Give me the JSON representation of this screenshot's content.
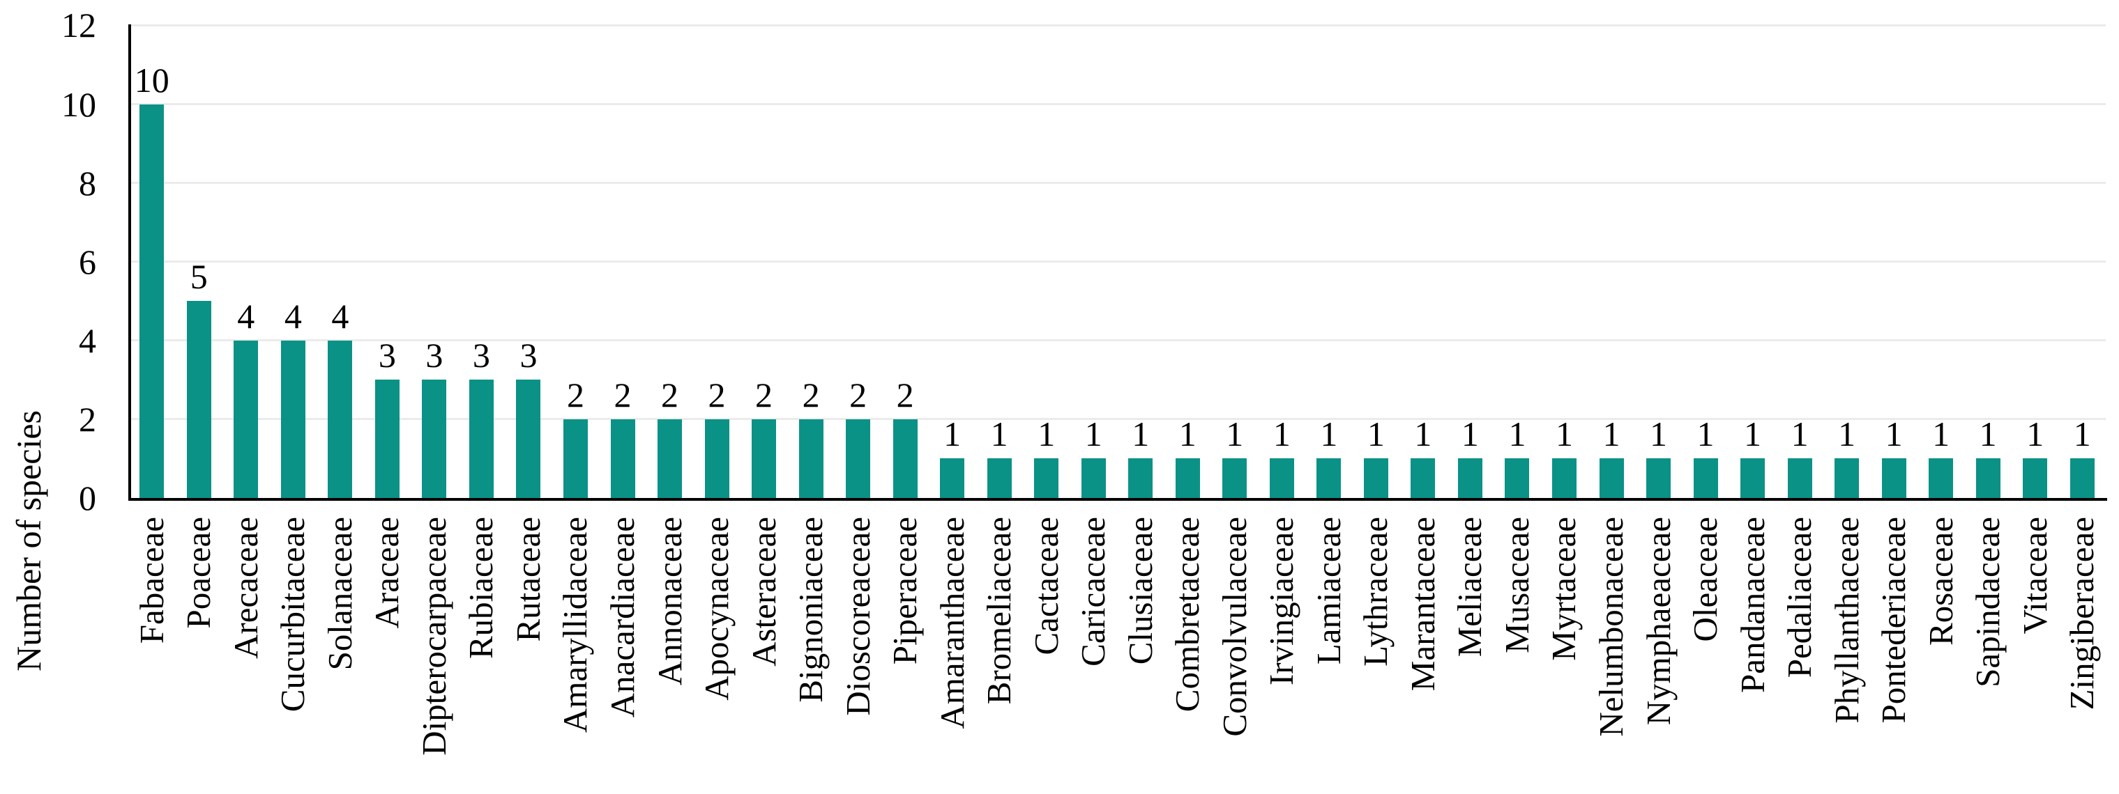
{
  "chart_data": {
    "type": "bar",
    "title": "",
    "xlabel": "",
    "ylabel": "Number of species",
    "ylim": [
      0,
      12
    ],
    "yticks": [
      0,
      2,
      4,
      6,
      8,
      10,
      12
    ],
    "grid": true,
    "legend": false,
    "data_labels_shown": true,
    "bar_color": "#0a9286",
    "gridline_color": "#ebebeb",
    "axis_color": "#000000",
    "categories": [
      "Fabaceae",
      "Poaceae",
      "Arecaceae",
      "Cucurbitaceae",
      "Solanaceae",
      "Araceae",
      "Dipterocarpaceae",
      "Rubiaceae",
      "Rutaceae",
      "Amaryllidaceae",
      "Anacardiaceae",
      "Annonaceae",
      "Apocynaceae",
      "Asteraceae",
      "Bignoniaceae",
      "Dioscoreaceae",
      "Piperaceae",
      "Amaranthaceae",
      "Bromeliaceae",
      "Cactaceae",
      "Caricaceae",
      "Clusiaceae",
      "Combretaceae",
      "Convolvulaceae",
      "Irvingiaceae",
      "Lamiaceae",
      "Lythraceae",
      "Marantaceae",
      "Meliaceae",
      "Musaceae",
      "Myrtaceae",
      "Nelumbonaceae",
      "Nymphaeaceae",
      "Oleaceae",
      "Pandanaceae",
      "Pedaliaceae",
      "Phyllanthaceae",
      "Pontederiaceae",
      "Rosaceae",
      "Sapindaceae",
      "Vitaceae",
      "Zingiberaceae"
    ],
    "values": [
      10,
      5,
      4,
      4,
      4,
      3,
      3,
      3,
      3,
      2,
      2,
      2,
      2,
      2,
      2,
      2,
      2,
      1,
      1,
      1,
      1,
      1,
      1,
      1,
      1,
      1,
      1,
      1,
      1,
      1,
      1,
      1,
      1,
      1,
      1,
      1,
      1,
      1,
      1,
      1,
      1,
      1
    ]
  }
}
